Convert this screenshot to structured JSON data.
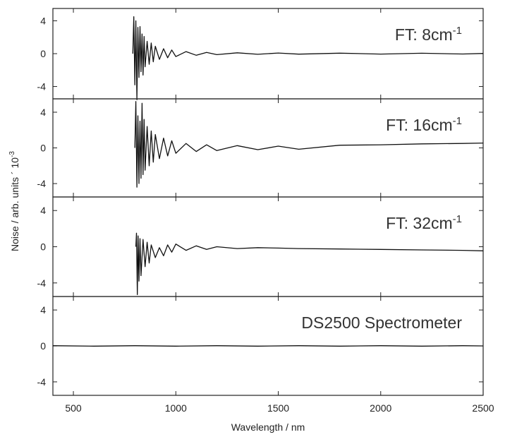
{
  "chart_data": {
    "type": "line",
    "panel_count": 4,
    "xlabel": "Wavelength / nm",
    "ylabel_main": "Noise / arb. units ´ 10",
    "ylabel_exponent": "-3",
    "xlim": [
      400,
      2500
    ],
    "x_ticks": [
      500,
      1000,
      1500,
      2000,
      2500
    ],
    "y_ticks": [
      4,
      0,
      -4
    ],
    "grid": false,
    "line_color": "#111111",
    "panels": [
      {
        "label_main": "FT: 8cm",
        "label_sup": "-1",
        "ylim": [
          -5.5,
          5.5
        ],
        "series": [
          {
            "x": [
              790,
              795,
              800,
              805,
              810,
              815,
              820,
              825,
              830,
              835,
              840,
              845,
              850,
              860,
              870,
              880,
              890,
              900,
              920,
              940,
              960,
              980,
              1000,
              1050,
              1100,
              1150,
              1200,
              1300,
              1400,
              1500,
              1600,
              1800,
              2000,
              2200,
              2400,
              2500
            ],
            "y": [
              0,
              4.5,
              -3.8,
              4.0,
              -5.6,
              3.2,
              -2.9,
              3.3,
              -2.2,
              2.4,
              -2.6,
              2.1,
              -1.6,
              1.5,
              -1.3,
              1.3,
              -1.0,
              0.9,
              -0.7,
              0.6,
              -0.5,
              0.45,
              -0.35,
              0.25,
              -0.2,
              0.15,
              -0.12,
              0.1,
              -0.08,
              0.08,
              -0.06,
              0.06,
              -0.05,
              0.05,
              -0.04,
              0.03
            ]
          }
        ]
      },
      {
        "label_main": "FT: 16cm",
        "label_sup": "-1",
        "ylim": [
          -5.5,
          5.5
        ],
        "series": [
          {
            "x": [
              800,
              805,
              810,
              815,
              820,
              825,
              830,
              835,
              840,
              845,
              850,
              860,
              870,
              880,
              890,
              900,
              920,
              940,
              960,
              980,
              1000,
              1050,
              1100,
              1150,
              1200,
              1300,
              1400,
              1500,
              1600,
              1800,
              2000,
              2200,
              2400,
              2500
            ],
            "y": [
              0,
              5.2,
              -4.4,
              3.6,
              -4.0,
              3.0,
              -3.4,
              5.0,
              -3.0,
              3.2,
              -2.5,
              2.4,
              -2.0,
              1.9,
              -1.6,
              1.5,
              -1.2,
              1.1,
              -0.9,
              0.8,
              -0.6,
              0.5,
              -0.4,
              0.35,
              -0.3,
              0.25,
              -0.2,
              0.2,
              -0.15,
              0.3,
              0.35,
              0.45,
              0.5,
              0.55
            ]
          }
        ]
      },
      {
        "label_main": "FT: 32cm",
        "label_sup": "-1",
        "ylim": [
          -5.5,
          5.5
        ],
        "series": [
          {
            "x": [
              805,
              808,
              812,
              816,
              820,
              825,
              830,
              840,
              850,
              860,
              870,
              880,
              900,
              920,
              940,
              960,
              980,
              1000,
              1050,
              1100,
              1150,
              1200,
              1300,
              1400,
              1500,
              1600,
              1800,
              2000,
              2200,
              2400,
              2500
            ],
            "y": [
              0,
              1.5,
              -5.3,
              1.2,
              -3.8,
              0.9,
              -3.2,
              0.8,
              -2.2,
              0.5,
              -1.8,
              0.2,
              -1.2,
              -0.1,
              -1.0,
              0.2,
              -0.6,
              0.3,
              -0.4,
              0.1,
              -0.3,
              0.0,
              -0.2,
              -0.1,
              -0.15,
              -0.2,
              -0.25,
              -0.3,
              -0.35,
              -0.4,
              -0.45
            ]
          }
        ]
      },
      {
        "label_main": "DS2500 Spectrometer",
        "label_sup": "",
        "ylim": [
          -5.5,
          5.5
        ],
        "series": [
          {
            "x": [
              400,
              600,
              800,
              1000,
              1200,
              1400,
              1600,
              1800,
              2000,
              2200,
              2400,
              2500
            ],
            "y": [
              0.02,
              -0.02,
              0.02,
              -0.02,
              0.02,
              -0.02,
              0.02,
              -0.02,
              0.02,
              -0.02,
              0.02,
              0.0
            ]
          }
        ]
      }
    ]
  }
}
